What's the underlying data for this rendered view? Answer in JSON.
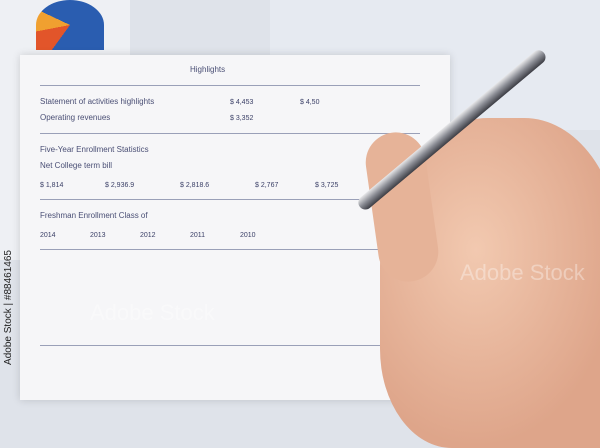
{
  "watermark": {
    "brand": "Adobe Stock",
    "id": "#88461465",
    "overlay": "Adobe Stock"
  },
  "document": {
    "lines": [
      {
        "label": "Highlights"
      },
      {
        "label": "Statement of activities highlights"
      },
      {
        "label": "Operating revenues"
      },
      {
        "label": "Five-Year Enrollment Statistics"
      },
      {
        "label": "Net College term bill"
      },
      {
        "label": "Freshman Enrollment Class of"
      }
    ],
    "numbers": [
      "$ 4,453",
      "$ 3,352",
      "$ 4,50",
      "$ 1,814",
      "$ 2,936.9",
      "$ 2,818.6",
      "$ 2,767",
      "$ 3,725",
      "2014",
      "2013",
      "2012",
      "2011",
      "2010"
    ]
  },
  "colors": {
    "pie_blue": "#2a5db0",
    "pie_red": "#e2552a",
    "pie_orange": "#f0a030",
    "skin": "#e6b398"
  }
}
